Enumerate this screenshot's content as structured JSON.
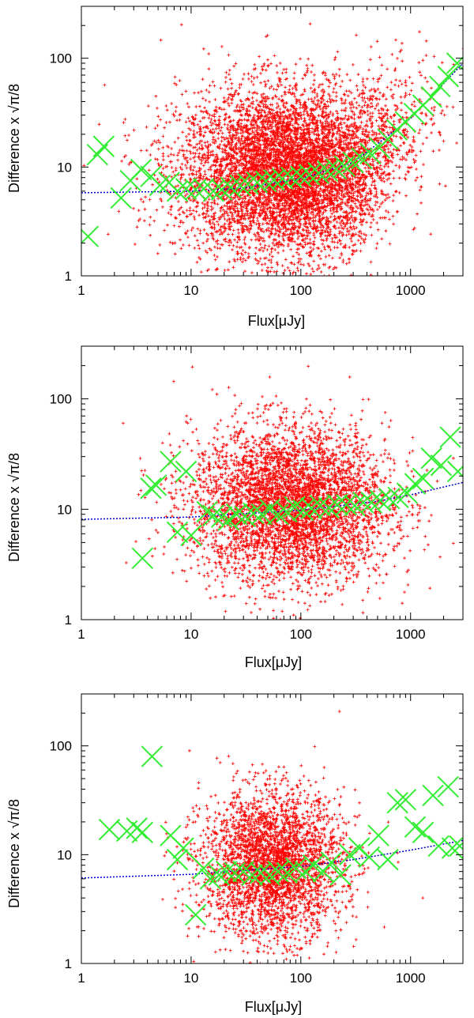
{
  "chart_data": [
    {
      "type": "scatter",
      "xlabel": "Flux[μJy]",
      "ylabel": "Difference x √π/8",
      "xscale": "log",
      "yscale": "log",
      "xlim": [
        1,
        3000
      ],
      "ylim": [
        1,
        300
      ],
      "xticks": [
        "1",
        "10",
        "100",
        "1000"
      ],
      "yticks": [
        "1",
        "10",
        "100"
      ],
      "grid": false,
      "colors": {
        "scatter": "#ff0000",
        "binned": "#33ee33",
        "fit": "#0000cc"
      },
      "scatter_cloud": {
        "count": 9000,
        "x_center": 80,
        "x_log_spread": 0.5,
        "trend": "rising",
        "y_center_at_center": 9,
        "y_log_spread": 0.38
      },
      "binned_points": [
        [
          1.15,
          2.3
        ],
        [
          1.4,
          13
        ],
        [
          1.6,
          15.5
        ],
        [
          2.3,
          5.2
        ],
        [
          2.8,
          7.5
        ],
        [
          3.5,
          9.5
        ],
        [
          4.3,
          8.2
        ],
        [
          5.2,
          6.8
        ],
        [
          6.3,
          7.2
        ],
        [
          7.5,
          6.0
        ],
        [
          9,
          6.3
        ],
        [
          11,
          6.2
        ],
        [
          13,
          6.3
        ],
        [
          16,
          6.0
        ],
        [
          19,
          6.2
        ],
        [
          23,
          6.5
        ],
        [
          28,
          6.8
        ],
        [
          33,
          7.0
        ],
        [
          40,
          7.2
        ],
        [
          48,
          7.4
        ],
        [
          57,
          7.6
        ],
        [
          68,
          7.8
        ],
        [
          82,
          8.0
        ],
        [
          100,
          8.2
        ],
        [
          120,
          8.5
        ],
        [
          145,
          8.8
        ],
        [
          175,
          9.2
        ],
        [
          210,
          9.6
        ],
        [
          250,
          10.2
        ],
        [
          300,
          11.0
        ],
        [
          360,
          12.0
        ],
        [
          430,
          13.3
        ],
        [
          520,
          15
        ],
        [
          620,
          18
        ],
        [
          750,
          22
        ],
        [
          900,
          26
        ],
        [
          1080,
          31
        ],
        [
          1300,
          37
        ],
        [
          1550,
          44
        ],
        [
          1850,
          55
        ],
        [
          2200,
          68
        ],
        [
          2650,
          90
        ]
      ],
      "fit_curve": [
        [
          1,
          5.8
        ],
        [
          10,
          6.0
        ],
        [
          30,
          6.4
        ],
        [
          100,
          7.8
        ],
        [
          300,
          11
        ],
        [
          1000,
          28
        ],
        [
          3000,
          90
        ]
      ]
    },
    {
      "type": "scatter",
      "xlabel": "Flux[μJy]",
      "ylabel": "Difference x √π/8",
      "xscale": "log",
      "yscale": "log",
      "xlim": [
        1,
        3000
      ],
      "ylim": [
        1,
        300
      ],
      "xticks": [
        "1",
        "10",
        "100",
        "1000"
      ],
      "yticks": [
        "1",
        "10",
        "100"
      ],
      "grid": false,
      "colors": {
        "scatter": "#ff0000",
        "binned": "#33ee33",
        "fit": "#0000cc"
      },
      "scatter_cloud": {
        "count": 4500,
        "x_center": 80,
        "x_log_spread": 0.45,
        "trend": "flat",
        "y_center_at_center": 11,
        "y_log_spread": 0.35
      },
      "binned_points": [
        [
          3.6,
          3.6
        ],
        [
          4.3,
          15.5
        ],
        [
          4.8,
          16.5
        ],
        [
          6.5,
          27
        ],
        [
          7.5,
          6.2
        ],
        [
          9,
          22
        ],
        [
          10,
          5.8
        ],
        [
          14,
          9.5
        ],
        [
          16,
          8.8
        ],
        [
          19,
          8.5
        ],
        [
          22,
          8.0
        ],
        [
          26,
          9.0
        ],
        [
          31,
          8.6
        ],
        [
          37,
          9.2
        ],
        [
          44,
          9.0
        ],
        [
          52,
          10.0
        ],
        [
          62,
          9.0
        ],
        [
          74,
          9.5
        ],
        [
          88,
          10.5
        ],
        [
          105,
          9.8
        ],
        [
          125,
          10.2
        ],
        [
          150,
          10.8
        ],
        [
          180,
          10.3
        ],
        [
          215,
          11.0
        ],
        [
          260,
          11.0
        ],
        [
          310,
          10.8
        ],
        [
          370,
          11.5
        ],
        [
          440,
          11.5
        ],
        [
          530,
          12.0
        ],
        [
          640,
          12.5
        ],
        [
          770,
          12.8
        ],
        [
          930,
          14
        ],
        [
          1100,
          17
        ],
        [
          1300,
          19
        ],
        [
          1550,
          29
        ],
        [
          1900,
          25
        ],
        [
          2300,
          45
        ],
        [
          2700,
          22
        ]
      ],
      "fit_curve": [
        [
          1,
          8.1
        ],
        [
          10,
          8.5
        ],
        [
          100,
          9.8
        ],
        [
          500,
          11.8
        ],
        [
          1000,
          13.5
        ],
        [
          3000,
          17.5
        ]
      ]
    },
    {
      "type": "scatter",
      "xlabel": "Flux[μJy]",
      "ylabel": "Difference x √π/8",
      "xscale": "log",
      "yscale": "log",
      "xlim": [
        1,
        3000
      ],
      "ylim": [
        1,
        300
      ],
      "xticks": [
        "1",
        "10",
        "100",
        "1000"
      ],
      "yticks": [
        "1",
        "10",
        "100"
      ],
      "grid": false,
      "colors": {
        "scatter": "#ff0000",
        "binned": "#33ee33",
        "fit": "#0000cc"
      },
      "scatter_cloud": {
        "count": 3200,
        "x_center": 55,
        "x_log_spread": 0.32,
        "trend": "flat",
        "y_center_at_center": 8,
        "y_log_spread": 0.33
      },
      "binned_points": [
        [
          1.8,
          17
        ],
        [
          2.6,
          16.5
        ],
        [
          3.2,
          17.5
        ],
        [
          3.6,
          16.0
        ],
        [
          4.4,
          80
        ],
        [
          6.5,
          15
        ],
        [
          7.5,
          9.0
        ],
        [
          8.5,
          11.5
        ],
        [
          11,
          2.8
        ],
        [
          13,
          7.5
        ],
        [
          15,
          6.0
        ],
        [
          18,
          6.5
        ],
        [
          21,
          7.0
        ],
        [
          25,
          6.8
        ],
        [
          30,
          7.0
        ],
        [
          36,
          6.5
        ],
        [
          43,
          6.8
        ],
        [
          52,
          6.5
        ],
        [
          62,
          7.0
        ],
        [
          75,
          6.8
        ],
        [
          90,
          7.5
        ],
        [
          110,
          7.0
        ],
        [
          130,
          8.0
        ],
        [
          160,
          7.0
        ],
        [
          190,
          8.5
        ],
        [
          230,
          6.5
        ],
        [
          280,
          10
        ],
        [
          340,
          11.5
        ],
        [
          420,
          9.5
        ],
        [
          510,
          15
        ],
        [
          620,
          9.0
        ],
        [
          760,
          30
        ],
        [
          900,
          32
        ],
        [
          1100,
          18
        ],
        [
          1300,
          16
        ],
        [
          1600,
          35
        ],
        [
          1800,
          12
        ],
        [
          2200,
          42
        ],
        [
          2400,
          11.5
        ],
        [
          2800,
          12
        ]
      ],
      "fit_curve": [
        [
          1,
          6.1
        ],
        [
          10,
          6.6
        ],
        [
          100,
          7.8
        ],
        [
          300,
          9.0
        ],
        [
          1000,
          11.0
        ],
        [
          3000,
          13.5
        ]
      ]
    }
  ]
}
